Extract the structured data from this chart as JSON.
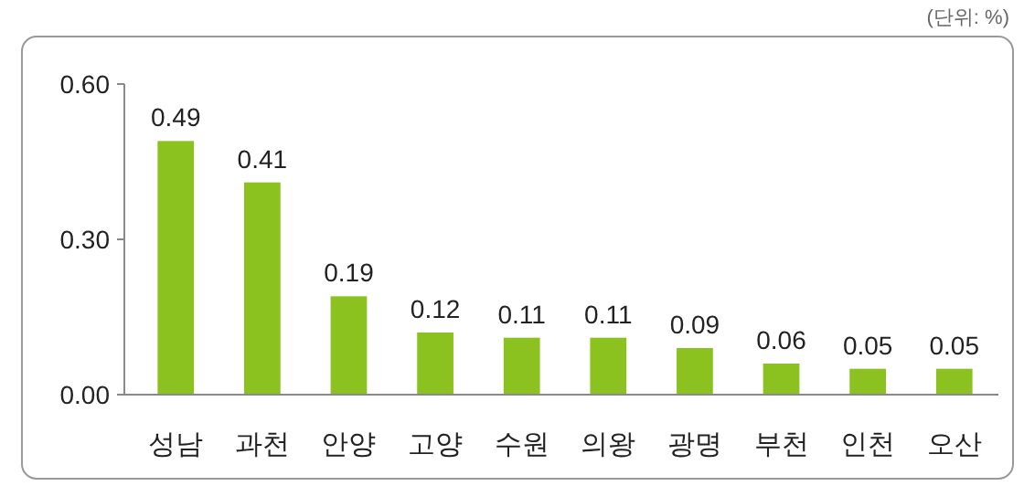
{
  "chart_data": {
    "type": "bar",
    "annotations": [
      "(단위: %)"
    ],
    "categories": [
      "성남",
      "과천",
      "안양",
      "고양",
      "수원",
      "의왕",
      "광명",
      "부천",
      "인천",
      "오산"
    ],
    "values": [
      0.49,
      0.41,
      0.19,
      0.12,
      0.11,
      0.11,
      0.09,
      0.06,
      0.05,
      0.05
    ],
    "color": "#8cc21f",
    "ylim": [
      0,
      0.6
    ],
    "yticks": [
      {
        "value": 0,
        "label": "0.00"
      },
      {
        "value": 0.3,
        "label": "0.30"
      },
      {
        "value": 0.6,
        "label": "0.60"
      }
    ],
    "data_labels": true,
    "grid": false
  }
}
